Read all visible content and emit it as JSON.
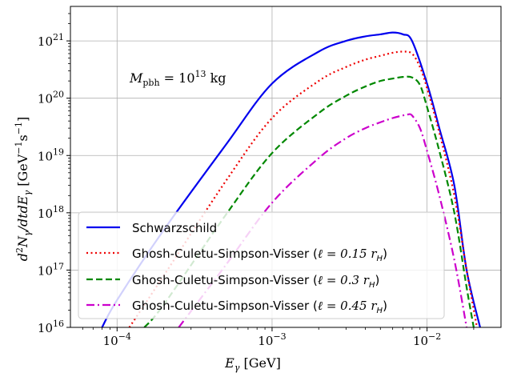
{
  "chart_data": {
    "type": "line",
    "title": "",
    "xlabel": "E_γ [GeV]",
    "ylabel": "d²N_γ/dtdE_γ [GeV⁻¹s⁻¹]",
    "x_scale": "log",
    "y_scale": "log",
    "xlim": [
      5e-05,
      0.03
    ],
    "ylim": [
      1e+16,
      4e+21
    ],
    "grid": true,
    "legend_position": "lower-left",
    "annotation": "M_pbh = 10^13 kg",
    "x_ticks": [
      {
        "mantissa": "10",
        "exp": "−4"
      },
      {
        "mantissa": "10",
        "exp": "−3"
      },
      {
        "mantissa": "10",
        "exp": "−2"
      }
    ],
    "y_ticks": [
      {
        "mantissa": "10",
        "exp": "16"
      },
      {
        "mantissa": "10",
        "exp": "17"
      },
      {
        "mantissa": "10",
        "exp": "18"
      },
      {
        "mantissa": "10",
        "exp": "19"
      },
      {
        "mantissa": "10",
        "exp": "20"
      },
      {
        "mantissa": "10",
        "exp": "21"
      }
    ],
    "series": [
      {
        "name": "Schwarzschild",
        "color": "#0000ee",
        "dash": "solid",
        "x": [
          8e-05,
          0.0001,
          0.0002,
          0.0005,
          0.001,
          0.002,
          0.003,
          0.004,
          0.005,
          0.006,
          0.007,
          0.008,
          0.01,
          0.012,
          0.015,
          0.018,
          0.022
        ],
        "y": [
          1e+16,
          3e+16,
          5e+17,
          1.5e+19,
          1.8e+20,
          6.5e+20,
          1e+21,
          1.2e+21,
          1.3e+21,
          1.4e+21,
          1.3e+21,
          1e+21,
          1.8e+20,
          3e+19,
          3e+18,
          1e+17,
          1e+16
        ]
      },
      {
        "name": "Ghosh-Culetu-Simpson-Visser (ℓ = 0.15 r_H)",
        "color": "#ee0000",
        "dash": "dotted",
        "x": [
          0.00012,
          0.0002,
          0.0005,
          0.001,
          0.002,
          0.003,
          0.004,
          0.005,
          0.006,
          0.007,
          0.008,
          0.009,
          0.01,
          0.012,
          0.015,
          0.018,
          0.021
        ],
        "y": [
          1e+16,
          8e+16,
          3.5e+18,
          4.5e+19,
          2e+20,
          3.5e+20,
          4.7e+20,
          5.5e+20,
          6.2e+20,
          6.5e+20,
          6e+20,
          3.5e+20,
          1.5e+20,
          2.5e+19,
          2e+18,
          1e+17,
          1e+16
        ]
      },
      {
        "name": "Ghosh-Culetu-Simpson-Visser (ℓ = 0.3 r_H)",
        "color": "#008800",
        "dash": "dashed",
        "x": [
          0.00015,
          0.0002,
          0.0005,
          0.001,
          0.002,
          0.003,
          0.004,
          0.005,
          0.006,
          0.007,
          0.008,
          0.009,
          0.01,
          0.012,
          0.015,
          0.018,
          0.02
        ],
        "y": [
          1e+16,
          2.5e+16,
          9e+17,
          1.1e+19,
          5.5e+19,
          1.1e+20,
          1.6e+20,
          2e+20,
          2.2e+20,
          2.35e+20,
          2.3e+20,
          1.7e+20,
          7e+19,
          1.2e+19,
          1e+18,
          5e+16,
          1e+16
        ]
      },
      {
        "name": "Ghosh-Culetu-Simpson-Visser (ℓ = 0.45 r_H)",
        "color": "#cc00cc",
        "dash": "dashdot",
        "x": [
          0.00025,
          0.0005,
          0.001,
          0.002,
          0.003,
          0.004,
          0.005,
          0.006,
          0.007,
          0.0075,
          0.008,
          0.009,
          0.01,
          0.012,
          0.015,
          0.018
        ],
        "y": [
          1e+16,
          1.2e+17,
          1.5e+18,
          9e+18,
          2e+19,
          3e+19,
          3.8e+19,
          4.5e+19,
          5e+19,
          5.2e+19,
          5e+19,
          3e+19,
          1.2e+19,
          2e+18,
          1.5e+17,
          1e+16
        ]
      }
    ]
  },
  "legend": {
    "items": [
      {
        "label": "Schwarzschild",
        "l": ""
      },
      {
        "label": "Ghosh-Culetu-Simpson-Visser (",
        "l": "ℓ = 0.15 r",
        "sub": "H",
        "close": ")"
      },
      {
        "label": "Ghosh-Culetu-Simpson-Visser (",
        "l": "ℓ = 0.3 r",
        "sub": "H",
        "close": ")"
      },
      {
        "label": "Ghosh-Culetu-Simpson-Visser (",
        "l": "ℓ = 0.45 r",
        "sub": "H",
        "close": ")"
      }
    ]
  },
  "annotation": {
    "m": "M",
    "sub": "pbh",
    "eq": " = 10",
    "exp": "13",
    "unit": " kg"
  },
  "axes": {
    "xlabel": {
      "e": "E",
      "sub": "γ",
      "unit": " [GeV]"
    },
    "ylabel": {
      "main": "d",
      "sup2": "2",
      "n": "N",
      "subg": "γ",
      "mid": "/dtdE",
      "subg2": "γ",
      "unit": " [GeV",
      "e1": "−1",
      "s": "s",
      "e2": "−1",
      "close": "]"
    }
  }
}
